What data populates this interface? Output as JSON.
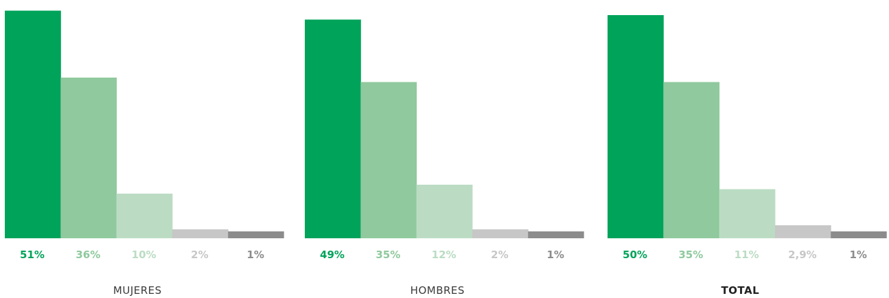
{
  "colors": [
    "#00a35a",
    "#8fc99d",
    "#bbdcc3",
    "#c7c7c7",
    "#8c8c8c"
  ],
  "chart_data": [
    {
      "type": "bar",
      "title": "MUJERES",
      "title_bold": false,
      "values": [
        51,
        36,
        10,
        2,
        1
      ],
      "value_labels": [
        "51%",
        "36%",
        "10%",
        "2%",
        "1%"
      ]
    },
    {
      "type": "bar",
      "title": "HOMBRES",
      "title_bold": false,
      "values": [
        49,
        35,
        12,
        2,
        1
      ],
      "value_labels": [
        "49%",
        "35%",
        "12%",
        "2%",
        "1%"
      ]
    },
    {
      "type": "bar",
      "title": "TOTAL",
      "title_bold": true,
      "values": [
        50,
        35,
        11,
        2.9,
        1
      ],
      "value_labels": [
        "50%",
        "35%",
        "11%",
        "2,9%",
        "1%"
      ]
    }
  ]
}
